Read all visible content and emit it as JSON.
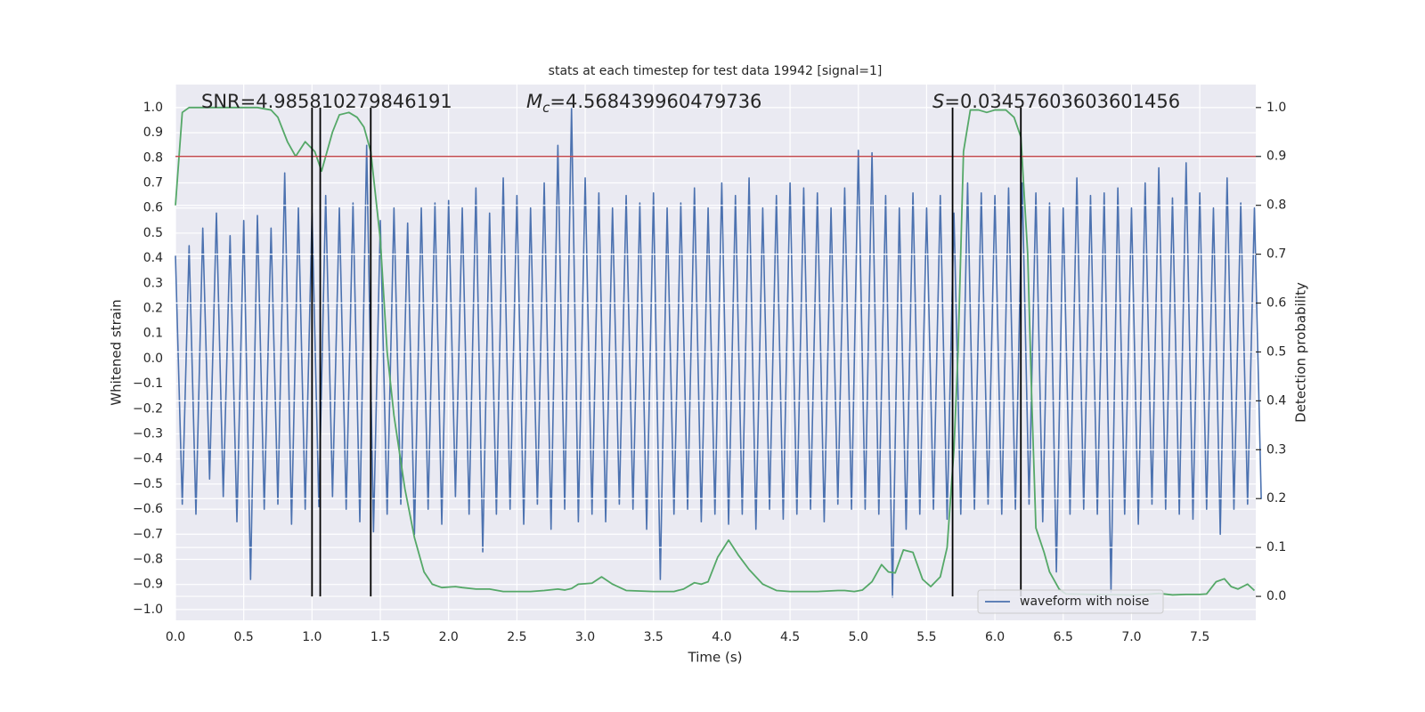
{
  "chart_data": {
    "type": "line",
    "title": "stats at each timestep for test data 19942 [signal=1]",
    "x_label": "Time (s)",
    "y_label": "Whitened strain",
    "y2_label": "Detection probability",
    "xlim": [
      0,
      7.91
    ],
    "ylim": [
      -1.043,
      1.092
    ],
    "y2lim": [
      -0.049,
      1.047
    ],
    "xticks": [
      {
        "value": 0,
        "label": "0.0"
      },
      {
        "value": 0.5,
        "label": "0.5"
      },
      {
        "value": 1,
        "label": "1.0"
      },
      {
        "value": 1.5,
        "label": "1.5"
      },
      {
        "value": 2,
        "label": "2.0"
      },
      {
        "value": 2.5,
        "label": "2.5"
      },
      {
        "value": 3,
        "label": "3.0"
      },
      {
        "value": 3.5,
        "label": "3.5"
      },
      {
        "value": 4,
        "label": "4.0"
      },
      {
        "value": 4.5,
        "label": "4.5"
      },
      {
        "value": 5,
        "label": "5.0"
      },
      {
        "value": 5.5,
        "label": "5.5"
      },
      {
        "value": 6,
        "label": "6.0"
      },
      {
        "value": 6.5,
        "label": "6.5"
      },
      {
        "value": 7,
        "label": "7.0"
      },
      {
        "value": 7.5,
        "label": "7.5"
      }
    ],
    "yticks": [
      {
        "value": -1,
        "label": "−1.0"
      },
      {
        "value": -0.9,
        "label": "−0.9"
      },
      {
        "value": -0.8,
        "label": "−0.8"
      },
      {
        "value": -0.7,
        "label": "−0.7"
      },
      {
        "value": -0.6,
        "label": "−0.6"
      },
      {
        "value": -0.5,
        "label": "−0.5"
      },
      {
        "value": -0.4,
        "label": "−0.4"
      },
      {
        "value": -0.3,
        "label": "−0.3"
      },
      {
        "value": -0.2,
        "label": "−0.2"
      },
      {
        "value": -0.1,
        "label": "−0.1"
      },
      {
        "value": 0,
        "label": "0.0"
      },
      {
        "value": 0.1,
        "label": "0.1"
      },
      {
        "value": 0.2,
        "label": "0.2"
      },
      {
        "value": 0.3,
        "label": "0.3"
      },
      {
        "value": 0.4,
        "label": "0.4"
      },
      {
        "value": 0.5,
        "label": "0.5"
      },
      {
        "value": 0.6,
        "label": "0.6"
      },
      {
        "value": 0.7,
        "label": "0.7"
      },
      {
        "value": 0.8,
        "label": "0.8"
      },
      {
        "value": 0.9,
        "label": "0.9"
      },
      {
        "value": 1,
        "label": "1.0"
      }
    ],
    "y2ticks": [
      {
        "value": 0,
        "label": "0.0"
      },
      {
        "value": 0.1,
        "label": "0.1"
      },
      {
        "value": 0.2,
        "label": "0.2"
      },
      {
        "value": 0.3,
        "label": "0.3"
      },
      {
        "value": 0.4,
        "label": "0.4"
      },
      {
        "value": 0.5,
        "label": "0.5"
      },
      {
        "value": 0.6,
        "label": "0.6"
      },
      {
        "value": 0.7,
        "label": "0.7"
      },
      {
        "value": 0.8,
        "label": "0.8"
      },
      {
        "value": 0.9,
        "label": "0.9"
      },
      {
        "value": 1,
        "label": "1.0"
      }
    ],
    "grid": true,
    "legend_position": "lower right",
    "series": [
      {
        "name": "waveform with noise",
        "color": "#4c72b0",
        "x": [
          0,
          0.05,
          0.1,
          0.15,
          0.2,
          0.25,
          0.3,
          0.35,
          0.4,
          0.45,
          0.5,
          0.55,
          0.6,
          0.65,
          0.7,
          0.75,
          0.8,
          0.85,
          0.9,
          0.95,
          1,
          1.05,
          1.1,
          1.15,
          1.2,
          1.25,
          1.3,
          1.35,
          1.4,
          1.45,
          1.5,
          1.55,
          1.6,
          1.65,
          1.7,
          1.75,
          1.8,
          1.85,
          1.9,
          1.95,
          2,
          2.05,
          2.1,
          2.15,
          2.2,
          2.25,
          2.3,
          2.35,
          2.4,
          2.45,
          2.5,
          2.55,
          2.6,
          2.65,
          2.7,
          2.75,
          2.8,
          2.85,
          2.9,
          2.95,
          3,
          3.05,
          3.1,
          3.15,
          3.2,
          3.25,
          3.3,
          3.35,
          3.4,
          3.45,
          3.5,
          3.55,
          3.6,
          3.65,
          3.7,
          3.75,
          3.8,
          3.85,
          3.9,
          3.95,
          4,
          4.05,
          4.1,
          4.15,
          4.2,
          4.25,
          4.3,
          4.35,
          4.4,
          4.45,
          4.5,
          4.55,
          4.6,
          4.65,
          4.7,
          4.75,
          4.8,
          4.85,
          4.9,
          4.95,
          5,
          5.05,
          5.1,
          5.15,
          5.2,
          5.25,
          5.3,
          5.35,
          5.4,
          5.45,
          5.5,
          5.55,
          5.6,
          5.65,
          5.7,
          5.75,
          5.8,
          5.85,
          5.9,
          5.95,
          6,
          6.05,
          6.1,
          6.15,
          6.2,
          6.25,
          6.3,
          6.35,
          6.4,
          6.45,
          6.5,
          6.55,
          6.6,
          6.65,
          6.7,
          6.75,
          6.8,
          6.85,
          6.9,
          6.95,
          7,
          7.05,
          7.1,
          7.15,
          7.2,
          7.25,
          7.3,
          7.35,
          7.4,
          7.45,
          7.5,
          7.55,
          7.6,
          7.65,
          7.7,
          7.75,
          7.8,
          7.85,
          7.9,
          7.95
        ],
        "values": [
          0.41,
          -0.58,
          0.45,
          -0.62,
          0.52,
          -0.48,
          0.58,
          -0.55,
          0.49,
          -0.65,
          0.55,
          -0.88,
          0.57,
          -0.6,
          0.52,
          -0.58,
          0.74,
          -0.66,
          0.6,
          -0.6,
          0.58,
          -0.59,
          0.65,
          -0.55,
          0.6,
          -0.6,
          0.62,
          -0.65,
          0.85,
          -0.69,
          0.55,
          -0.62,
          0.6,
          -0.58,
          0.54,
          -0.7,
          0.6,
          -0.6,
          0.62,
          -0.66,
          0.63,
          -0.55,
          0.6,
          -0.62,
          0.68,
          -0.77,
          0.58,
          -0.62,
          0.72,
          -0.6,
          0.65,
          -0.66,
          0.6,
          -0.58,
          0.7,
          -0.68,
          0.85,
          -0.6,
          1.0,
          -0.65,
          0.72,
          -0.62,
          0.66,
          -0.65,
          0.6,
          -0.58,
          0.65,
          -0.6,
          0.62,
          -0.68,
          0.66,
          -0.88,
          0.6,
          -0.62,
          0.62,
          -0.6,
          0.68,
          -0.65,
          0.6,
          -0.62,
          0.7,
          -0.66,
          0.65,
          -0.62,
          0.72,
          -0.68,
          0.6,
          -0.6,
          0.65,
          -0.64,
          0.7,
          -0.62,
          0.68,
          -0.6,
          0.66,
          -0.65,
          0.6,
          -0.58,
          0.68,
          -0.6,
          0.83,
          -0.6,
          0.82,
          -0.62,
          0.65,
          -0.95,
          0.6,
          -0.68,
          0.66,
          -0.62,
          0.6,
          -0.6,
          0.65,
          -0.64,
          0.58,
          -0.62,
          0.7,
          -0.6,
          0.66,
          -0.58,
          0.65,
          -0.62,
          0.68,
          -0.6,
          0.7,
          -0.58,
          0.66,
          -0.65,
          0.62,
          -0.85,
          0.6,
          -0.62,
          0.72,
          -0.6,
          0.65,
          -0.62,
          0.66,
          -0.93,
          0.68,
          -0.62,
          0.6,
          -0.66,
          0.7,
          -0.58,
          0.76,
          -0.6,
          0.64,
          -0.62,
          0.78,
          -0.64,
          0.66,
          -0.6,
          0.6,
          -0.7,
          0.72,
          -0.6,
          0.62,
          -0.58,
          0.6,
          -0.56
        ]
      },
      {
        "color": "#55a868",
        "axis": "y2",
        "x": [
          0,
          0.05,
          0.1,
          0.6,
          0.7,
          0.75,
          0.82,
          0.88,
          0.95,
          1.02,
          1.07,
          1.15,
          1.2,
          1.27,
          1.33,
          1.38,
          1.43,
          1.5,
          1.55,
          1.6,
          1.68,
          1.75,
          1.82,
          1.88,
          1.95,
          2.05,
          2.1,
          2.2,
          2.3,
          2.4,
          2.6,
          2.7,
          2.8,
          2.85,
          2.9,
          2.95,
          3.05,
          3.12,
          3.2,
          3.3,
          3.5,
          3.65,
          3.72,
          3.8,
          3.85,
          3.9,
          3.97,
          4.05,
          4.12,
          4.2,
          4.3,
          4.4,
          4.5,
          4.7,
          4.85,
          4.9,
          4.97,
          5.03,
          5.1,
          5.17,
          5.22,
          5.27,
          5.33,
          5.4,
          5.47,
          5.53,
          5.6,
          5.65,
          5.7,
          5.73,
          5.77,
          5.82,
          5.88,
          5.94,
          6,
          6.08,
          6.14,
          6.19,
          6.24,
          6.27,
          6.3,
          6.36,
          6.4,
          6.47,
          6.52,
          6.7,
          7,
          7.1,
          7.2,
          7.3,
          7.4,
          7.5,
          7.55,
          7.62,
          7.68,
          7.73,
          7.78,
          7.85,
          7.9
        ],
        "values": [
          0.8,
          0.99,
          1.0,
          1.0,
          0.995,
          0.98,
          0.93,
          0.9,
          0.93,
          0.91,
          0.87,
          0.95,
          0.985,
          0.99,
          0.98,
          0.96,
          0.91,
          0.73,
          0.5,
          0.37,
          0.22,
          0.12,
          0.05,
          0.025,
          0.018,
          0.02,
          0.018,
          0.015,
          0.015,
          0.01,
          0.01,
          0.012,
          0.015,
          0.013,
          0.016,
          0.025,
          0.027,
          0.04,
          0.025,
          0.012,
          0.01,
          0.01,
          0.015,
          0.028,
          0.025,
          0.03,
          0.08,
          0.115,
          0.085,
          0.055,
          0.025,
          0.012,
          0.01,
          0.01,
          0.012,
          0.012,
          0.01,
          0.013,
          0.03,
          0.065,
          0.05,
          0.048,
          0.095,
          0.09,
          0.035,
          0.02,
          0.04,
          0.1,
          0.3,
          0.5,
          0.91,
          0.995,
          0.995,
          0.99,
          0.995,
          0.995,
          0.98,
          0.94,
          0.7,
          0.4,
          0.14,
          0.09,
          0.05,
          0.015,
          0.005,
          0.004,
          0.003,
          0.004,
          0.006,
          0.003,
          0.004,
          0.004,
          0.005,
          0.03,
          0.036,
          0.02,
          0.015,
          0.025,
          0.012
        ]
      }
    ],
    "threshold": 0.9,
    "threshold_color": "#c44e52",
    "vlines": [
      1.0,
      1.06,
      1.43,
      5.69,
      6.19
    ],
    "vline_color": "#000000",
    "annotations": [
      {
        "text": "SNR=4.985810279846191"
      },
      {
        "symbol": "M",
        "subscript": "c",
        "text": "=4.568439960479736"
      },
      {
        "symbol": "S",
        "text": "=0.03457603603601456"
      }
    ]
  }
}
